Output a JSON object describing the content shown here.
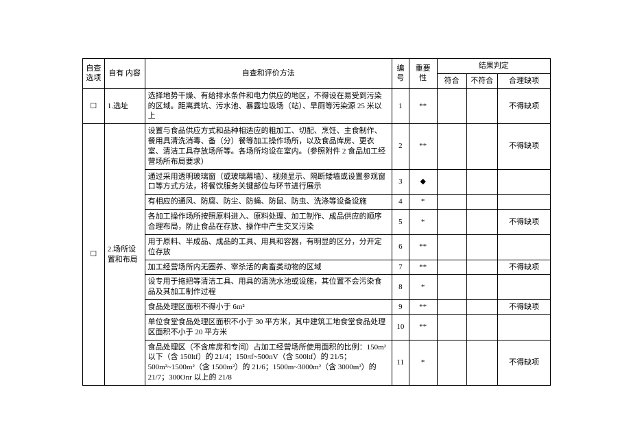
{
  "headers": {
    "check_option": "自查\n选项",
    "self_content": "自有\n内容",
    "method": "自查和评价方法",
    "number": "编号",
    "importance": "重要性",
    "result_group": "结果判定",
    "result_conform": "符合",
    "result_nonconform": "不符合",
    "result_reasonable": "合理缺项"
  },
  "section1": {
    "checkbox": "☐",
    "title": "1.选址",
    "row": {
      "method": "选择地势干燥、有给排水条件和电力供应的地区，不得设在易受到污染的区域。距离粪坑、污水池、暴露垃圾场（站）、旱厕等污染源 25 米以上",
      "no": "1",
      "importance": "**",
      "reasonable": "不得缺项"
    }
  },
  "section2": {
    "checkbox": "☐",
    "title": "2.场所设置和布局",
    "rows": [
      {
        "method": "设置与食品供应方式和品种相适应的粗加工、切配、烹饪、主食制作、餐用具清洗消毒、备（分）餐等加工操作场所，以及食品库房、更衣室、清洁工具存放场所等。各场所均设在室内。（参照附件 2 食品加工经营场所布局要求）",
        "no": "2",
        "importance": "**",
        "reasonable": "不得缺项"
      },
      {
        "method": "通过采用透明玻璃窗（或玻璃幕墙）、视频显示、隔断矮墙或设置参观窗口等方式方法，将餐饮服务关键部位与环节进行展示",
        "no": "3",
        "importance": "◆",
        "reasonable": ""
      },
      {
        "method": "有相应的通风、防腐、防尘、防蝇、防鼠、防虫、洗涤等设备设施",
        "no": "4",
        "importance": "*",
        "reasonable": ""
      },
      {
        "method": "各加工操作场所按照原料进入、原料处理、加工制作、成品供应的顺序合理布局，防止食品在存放、操作中产生交叉污染",
        "no": "5",
        "importance": "*",
        "reasonable": "不得缺项"
      },
      {
        "method": "用于原料、半成品、成品的工具、用具和容器，有明显的区分，分开定位存放",
        "no": "6",
        "importance": "**",
        "reasonable": ""
      },
      {
        "method": "加工经营场所内无圈养、宰杀活的禽畜类动物的区域",
        "no": "7",
        "importance": "**",
        "reasonable": "不得缺项"
      },
      {
        "method": "设专用于拖把等清洁工具、用具的清洗水池或设施，其位置不会污染食品及其加工制作过程",
        "no": "8",
        "importance": "*",
        "reasonable": ""
      },
      {
        "method": "食品处理区面积不得小于 6m²",
        "no": "9",
        "importance": "**",
        "reasonable": "不得缺项"
      },
      {
        "method": "单位食堂食品处理区面积不小于 30 平方米，其中建筑工地食堂食品处理区面积不小于 20 平方米",
        "no": "10",
        "importance": "**",
        "reasonable": ""
      },
      {
        "method": "食品处理区（不含库房和专间）占加工经营场所使用面积的比例：150m²以下（含 150ltf）的 21/4；150πf~500nV（含 500ltf）的 21/5；500m²~1500m²（含 1500m²）的 21/6；1500m~3000m²（含 3000m²）的 21/7；300Onr 以上的 21/8",
        "no": "11",
        "importance": "*",
        "reasonable": "不得缺项"
      }
    ]
  }
}
